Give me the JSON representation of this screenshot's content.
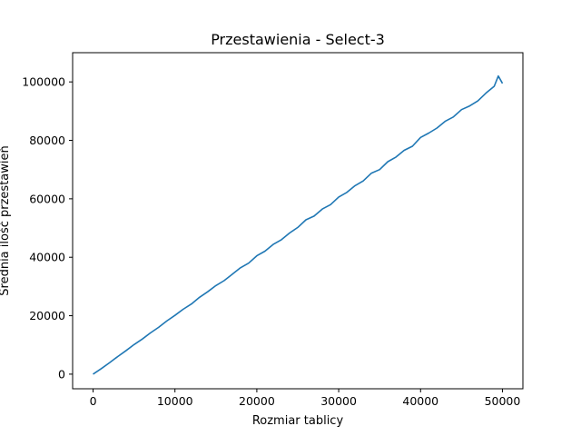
{
  "chart_data": {
    "type": "line",
    "title": "Przestawienia - Select-3",
    "xlabel": "Rozmiar tablicy",
    "ylabel": "Średnia ilość przestawień",
    "xlim": [
      -2500,
      52500
    ],
    "ylim": [
      -5000,
      110000
    ],
    "x_ticks": [
      0,
      10000,
      20000,
      30000,
      40000,
      50000
    ],
    "x_tick_labels": [
      "0",
      "10000",
      "20000",
      "30000",
      "40000",
      "50000"
    ],
    "y_ticks": [
      0,
      20000,
      40000,
      60000,
      80000,
      100000
    ],
    "y_tick_labels": [
      "0",
      "20000",
      "40000",
      "60000",
      "80000",
      "100000"
    ],
    "grid": false,
    "legend": "none",
    "series": [
      {
        "color": "#1f77b4",
        "x": [
          0,
          1000,
          2000,
          3000,
          4000,
          5000,
          6000,
          7000,
          8000,
          9000,
          10000,
          11000,
          12000,
          13000,
          14000,
          15000,
          16000,
          17000,
          18000,
          19000,
          20000,
          21000,
          22000,
          23000,
          24000,
          25000,
          26000,
          27000,
          28000,
          29000,
          30000,
          31000,
          32000,
          33000,
          34000,
          35000,
          36000,
          37000,
          38000,
          39000,
          40000,
          41000,
          42000,
          43000,
          44000,
          45000,
          46000,
          47000,
          48000,
          49000,
          49500,
          50000
        ],
        "y": [
          0,
          1900,
          3900,
          6000,
          8000,
          10100,
          12000,
          14100,
          16000,
          18200,
          20100,
          22200,
          24000,
          26300,
          28200,
          30300,
          32000,
          34200,
          36400,
          38000,
          40500,
          42100,
          44400,
          46000,
          48300,
          50200,
          52800,
          54100,
          56500,
          58000,
          60600,
          62200,
          64500,
          66100,
          68800,
          70000,
          72700,
          74300,
          76600,
          78000,
          81000,
          82500,
          84200,
          86500,
          88000,
          90500,
          91800,
          93500,
          96200,
          98500,
          102000,
          99500
        ]
      }
    ]
  }
}
